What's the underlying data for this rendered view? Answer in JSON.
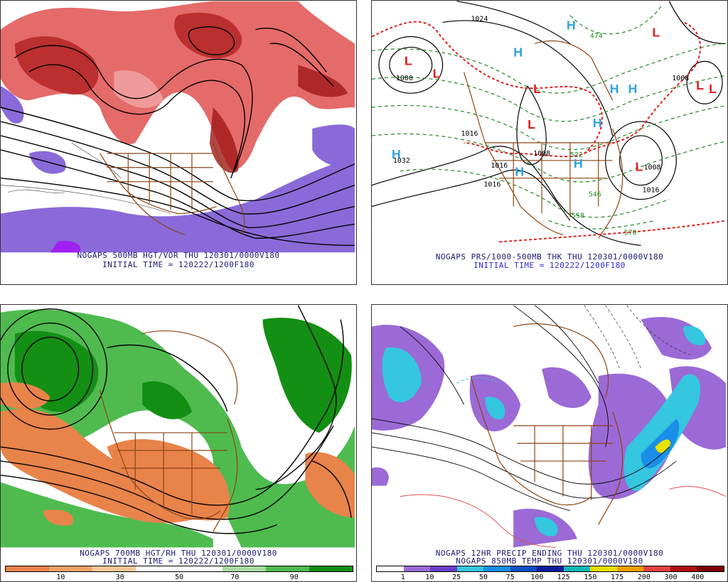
{
  "panels": [
    {
      "id": "500mb",
      "caption1": "NOGAPS 500MB HGT/VOR THU 120301/0000V180",
      "caption2": "INITIAL TIME = 120222/1200F180"
    },
    {
      "id": "pressure",
      "caption1": "NOGAPS PRS/1000-500MB THK THU 120301/0000V180",
      "caption2": "INITIAL TIME = 120222/1200F180",
      "labels": {
        "highs": [
          "H",
          "H",
          "H",
          "H",
          "H",
          "H",
          "H",
          "H"
        ],
        "lows": [
          "L",
          "L",
          "L",
          "L",
          "L",
          "L",
          "L",
          "L"
        ],
        "isobars": [
          "1024",
          "1032",
          "1016",
          "1016",
          "1016",
          "1008",
          "1016",
          "1000",
          "1008",
          "1008"
        ],
        "thickness": [
          "474",
          "546",
          "558",
          "570",
          "522"
        ]
      }
    },
    {
      "id": "700mb",
      "caption1": "NOGAPS 700MB HGT/RH THU 120301/0000V180",
      "caption2": "INITIAL TIME = 120222/1200F180",
      "colorbar": {
        "colors": [
          "#e8834a",
          "#f2a468",
          "#f7c89a",
          "#ffffff",
          "#ffffff",
          "#a8dda0",
          "#4fbb4f",
          "#138f13"
        ],
        "ticks": [
          "10",
          "30",
          "50",
          "70",
          "90"
        ]
      }
    },
    {
      "id": "precip",
      "caption1": "NOGAPS 12HR PRECIP ENDING THU 120301/0000V180",
      "caption2": "NOGAPS 850MB TEMP THU 120301/0000V180",
      "colorbar": {
        "colors": [
          "#ffffff",
          "#9b6ad6",
          "#6a3fc8",
          "#35c6e0",
          "#1a8fe8",
          "#1050c8",
          "#0e1c9a",
          "#12b8b8",
          "#e8e000",
          "#f0a000",
          "#e84040",
          "#b01010",
          "#7a0000"
        ],
        "ticks": [
          "1",
          "10",
          "25",
          "50",
          "75",
          "100",
          "125",
          "150",
          "175",
          "200",
          "300",
          "400"
        ]
      }
    }
  ]
}
